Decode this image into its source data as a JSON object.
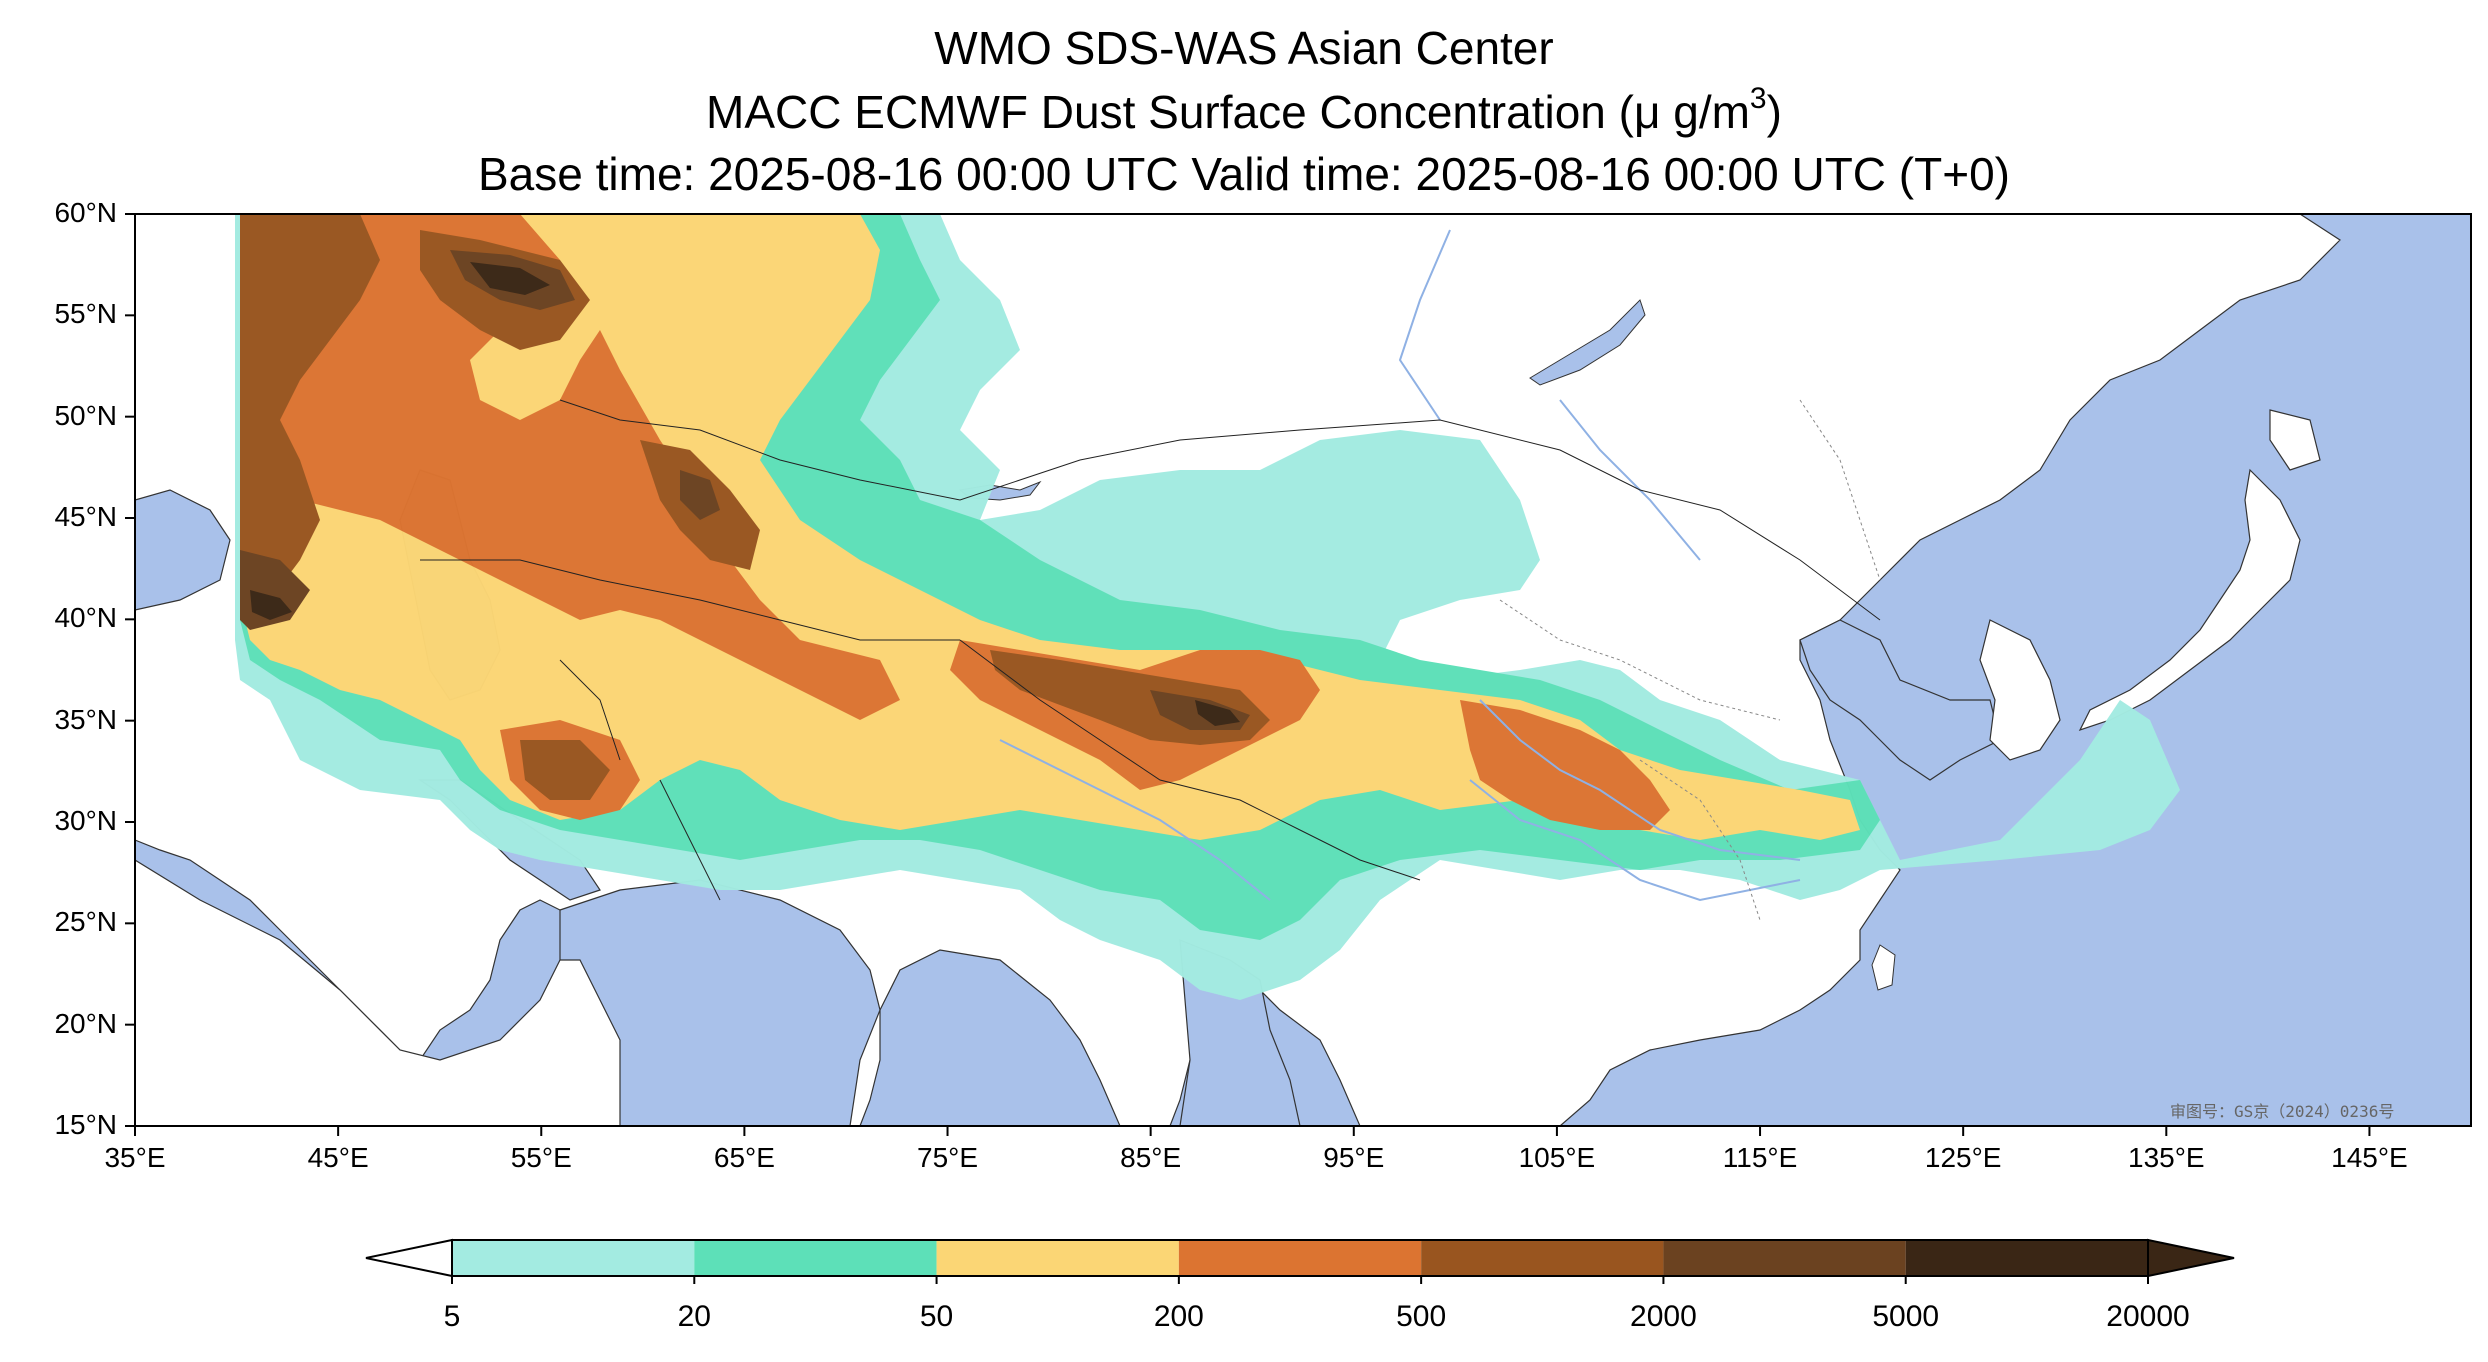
{
  "title": {
    "line1": "WMO SDS-WAS Asian Center",
    "line2_prefix": "MACC ECMWF Dust Surface Concentration (",
    "line2_unit": "μ g/m",
    "line2_sup": "3",
    "line2_suffix": ")",
    "line3": "Base time: 2025-08-16 00:00 UTC Valid time: 2025-08-16 00:00 UTC (T+0)"
  },
  "map": {
    "lat_labels": [
      "60°N",
      "55°N",
      "50°N",
      "45°N",
      "40°N",
      "35°N",
      "30°N",
      "25°N",
      "20°N",
      "15°N"
    ],
    "lon_labels": [
      "35°E",
      "45°E",
      "55°E",
      "65°E",
      "75°E",
      "85°E",
      "95°E",
      "105°E",
      "115°E",
      "125°E",
      "135°E",
      "145°E"
    ],
    "lat_range": [
      15,
      60
    ],
    "lon_range": [
      35,
      150
    ],
    "approval_stamp": "审图号：GS京（2024）0236号",
    "ocean_color": "#a9c1ea",
    "land_color": "#ffffff"
  },
  "colorbar": {
    "labels": [
      "5",
      "20",
      "50",
      "200",
      "500",
      "2000",
      "5000",
      "20000"
    ],
    "colors": [
      "#a3ebe1",
      "#5de0b8",
      "#fbd675",
      "#dc7431",
      "#99551f",
      "#6b4220",
      "#3a2615"
    ],
    "extend": "both"
  }
}
